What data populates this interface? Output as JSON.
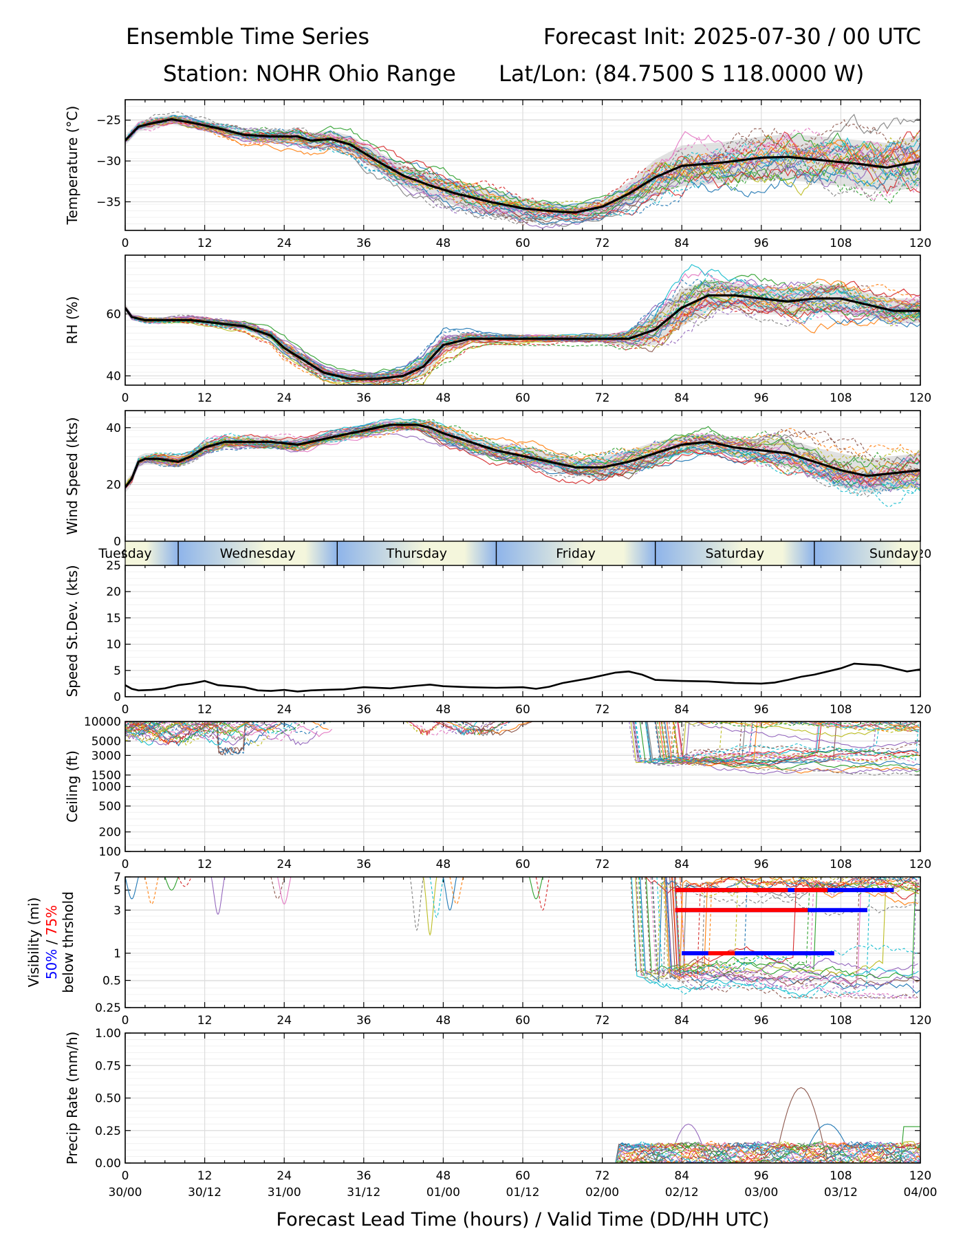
{
  "header": {
    "title_left": "Ensemble Time Series",
    "title_right": "Forecast Init: 2025-07-30 / 00 UTC",
    "station": "Station: NOHR Ohio Range",
    "latlon": "Lat/Lon: (84.7500 S 118.0000 W)"
  },
  "footer": {
    "xlabel": "Forecast Lead Time (hours) / Valid Time (DD/HH UTC)"
  },
  "colors": {
    "ensemble_palette": [
      "#1f77b4",
      "#ff7f0e",
      "#2ca02c",
      "#d62728",
      "#9467bd",
      "#8c564b",
      "#e377c2",
      "#7f7f7f",
      "#bcbd22",
      "#17becf"
    ],
    "mean": "#000000",
    "spread": "#c8c8c8",
    "vis_50": "#0000ff",
    "vis_75": "#ff0000",
    "day_blue": "#8eb4ea",
    "day_cream": "#f4f6dc"
  },
  "chart_data": {
    "type": "line",
    "x_ticks": [
      0,
      12,
      24,
      36,
      48,
      60,
      72,
      84,
      96,
      108,
      120
    ],
    "valid_time_labels": [
      "30/00",
      "30/12",
      "31/00",
      "31/12",
      "01/00",
      "01/12",
      "02/00",
      "02/12",
      "03/00",
      "03/12",
      "04/00"
    ],
    "xlim": [
      0,
      120
    ],
    "panels": [
      {
        "id": "temperature",
        "ylabel": "Temperature (°C)",
        "ylim": [
          -38.5,
          -22.5
        ],
        "yticks": [
          -35,
          -30,
          -25
        ],
        "ytick_labels": [
          "−35",
          "−30",
          "−25"
        ],
        "ensemble_members": 30,
        "mean": {
          "x": [
            0,
            2,
            4,
            7,
            10,
            14,
            18,
            22,
            26,
            28,
            31,
            34,
            38,
            42,
            46,
            50,
            55,
            60,
            65,
            68,
            72,
            76,
            80,
            84,
            90,
            96,
            100,
            105,
            110,
            115,
            120
          ],
          "y": [
            -27.5,
            -25.8,
            -25.4,
            -24.9,
            -25.3,
            -26.0,
            -26.8,
            -27.0,
            -27.0,
            -27.5,
            -27.3,
            -28.0,
            -30.0,
            -31.8,
            -33.0,
            -34.0,
            -35.0,
            -35.8,
            -36.2,
            -36.3,
            -35.6,
            -34.0,
            -32.0,
            -30.6,
            -30.2,
            -29.6,
            -29.5,
            -29.9,
            -30.3,
            -30.8,
            -30.0
          ]
        },
        "spread": [
          0.6,
          0.6,
          0.7,
          0.6,
          0.6,
          0.7,
          0.8,
          0.8,
          0.9,
          0.9,
          1.0,
          1.1,
          1.2,
          1.3,
          1.4,
          1.5,
          1.5,
          1.3,
          1.0,
          0.9,
          1.0,
          1.4,
          2.2,
          2.5,
          2.5,
          2.6,
          2.8,
          2.9,
          2.9,
          3.0,
          3.2
        ]
      },
      {
        "id": "rh",
        "ylabel": "RH (%)",
        "ylim": [
          37,
          79
        ],
        "yticks": [
          40,
          60
        ],
        "ytick_labels": [
          "40",
          "60"
        ],
        "ensemble_members": 30,
        "mean": {
          "x": [
            0,
            1,
            3,
            6,
            10,
            14,
            18,
            22,
            24,
            27,
            30,
            34,
            38,
            42,
            45,
            48,
            52,
            56,
            60,
            64,
            68,
            72,
            76,
            80,
            84,
            88,
            92,
            96,
            100,
            104,
            108,
            112,
            116,
            120
          ],
          "y": [
            62,
            59,
            58,
            58,
            58,
            57,
            56,
            53,
            49,
            45,
            41,
            39,
            39,
            40,
            43,
            50,
            52,
            52,
            52,
            52,
            52,
            52,
            52,
            55,
            62,
            66,
            66,
            65,
            64,
            65,
            65,
            63,
            61,
            61
          ]
        },
        "spread": [
          1.5,
          1.0,
          1.0,
          1.0,
          1.0,
          1.0,
          1.2,
          1.5,
          2.0,
          2.0,
          1.5,
          1.2,
          1.5,
          2.0,
          3.0,
          3.0,
          1.5,
          1.0,
          1.0,
          1.0,
          1.0,
          1.2,
          2.5,
          5.0,
          6.0,
          5.0,
          4.0,
          4.0,
          4.5,
          4.5,
          4.5,
          4.0,
          4.0,
          4.0
        ]
      },
      {
        "id": "wind",
        "ylabel": "Wind Speed (kts)",
        "ylim": [
          0,
          46
        ],
        "yticks": [
          0,
          20,
          40
        ],
        "ytick_labels": [
          "0",
          "20",
          "40"
        ],
        "ensemble_members": 30,
        "mean": {
          "x": [
            0,
            1,
            2,
            3,
            5,
            8,
            10,
            12,
            15,
            18,
            22,
            26,
            30,
            34,
            38,
            40,
            42,
            44,
            46,
            48,
            52,
            56,
            60,
            64,
            68,
            72,
            76,
            80,
            84,
            88,
            92,
            96,
            100,
            104,
            108,
            112,
            116,
            120
          ],
          "y": [
            19,
            22,
            28,
            29,
            29,
            28,
            30,
            33,
            35,
            35,
            35,
            34,
            36,
            38,
            40,
            41,
            41,
            41,
            40,
            38,
            35,
            32,
            30,
            28,
            26,
            26,
            28,
            31,
            34,
            35,
            33,
            32,
            31,
            28,
            25,
            23,
            24,
            25
          ]
        },
        "spread": [
          2,
          2,
          2,
          2,
          2,
          2,
          2,
          2,
          2,
          2,
          2,
          2,
          2,
          2,
          2,
          2,
          2,
          2,
          2.5,
          2.5,
          2.5,
          2.5,
          3,
          3,
          3,
          4,
          4,
          4,
          3,
          3,
          3,
          4,
          5,
          5,
          6,
          6,
          6,
          6
        ]
      },
      {
        "id": "speed_std",
        "ylabel": "Speed St.Dev. (kts)",
        "ylim": [
          0,
          25
        ],
        "yticks": [
          0,
          5,
          10,
          15,
          20,
          25
        ],
        "ytick_labels": [
          "0",
          "5",
          "10",
          "15",
          "20",
          "25"
        ],
        "mean": {
          "x": [
            0,
            1,
            2,
            4,
            6,
            8,
            10,
            12,
            14,
            16,
            18,
            20,
            22,
            24,
            26,
            28,
            30,
            33,
            36,
            40,
            44,
            46,
            48,
            52,
            56,
            60,
            62,
            64,
            66,
            70,
            74,
            76,
            78,
            80,
            84,
            88,
            92,
            96,
            98,
            100,
            102,
            104,
            106,
            108,
            110,
            114,
            118,
            120
          ],
          "y": [
            2.2,
            1.5,
            1.2,
            1.3,
            1.6,
            2.2,
            2.5,
            3.0,
            2.2,
            2.0,
            1.8,
            1.2,
            1.1,
            1.3,
            1.0,
            1.2,
            1.3,
            1.4,
            1.8,
            1.6,
            2.1,
            2.3,
            2.0,
            1.8,
            1.7,
            1.8,
            1.5,
            1.9,
            2.6,
            3.5,
            4.6,
            4.8,
            4.2,
            3.2,
            3.0,
            2.9,
            2.6,
            2.5,
            2.7,
            3.2,
            3.8,
            4.2,
            4.8,
            5.4,
            6.3,
            6.0,
            4.8,
            5.2
          ]
        }
      },
      {
        "id": "ceiling",
        "ylabel": "Ceiling (ft)",
        "scale": "log",
        "ylim": [
          100,
          10000
        ],
        "yticks": [
          100,
          200,
          500,
          1000,
          1500,
          3000,
          5000,
          10000
        ],
        "ytick_labels": [
          "100",
          "200",
          "500",
          "1000",
          "1500",
          "3000",
          "5000",
          "10000"
        ]
      },
      {
        "id": "visibility",
        "ylabel": "Visibility (mi)",
        "ylabel_50": "50%",
        "ylabel_sep": " / ",
        "ylabel_75": "75%",
        "ylabel_sub": "below thrshold",
        "scale": "log",
        "ylim": [
          0.25,
          7
        ],
        "yticks": [
          0.25,
          0.5,
          1,
          3,
          5,
          7
        ],
        "ytick_labels": [
          "0.25",
          "0.5",
          "1",
          "3",
          "5",
          "7"
        ],
        "thresholds": [
          {
            "level": 5,
            "x_start": 83,
            "x_end": 116,
            "p75_segments": [
              [
                83,
                100
              ],
              [
                101,
                106
              ]
            ]
          },
          {
            "level": 3,
            "x_start": 83,
            "x_end": 112,
            "p75_segments": [
              [
                83,
                103
              ]
            ]
          },
          {
            "level": 1,
            "x_start": 84,
            "x_end": 107,
            "p75_segments": [
              [
                88,
                92
              ]
            ]
          }
        ]
      },
      {
        "id": "precip",
        "ylabel": "Precip Rate (mm/h)",
        "ylim": [
          0,
          1
        ],
        "yticks": [
          0,
          0.25,
          0.5,
          0.75,
          1.0
        ],
        "ytick_labels": [
          "0.00",
          "0.25",
          "0.50",
          "0.75",
          "1.00"
        ]
      }
    ],
    "day_band": {
      "labels": [
        "Tuesday",
        "Wednesday",
        "Thursday",
        "Friday",
        "Saturday",
        "Sunday"
      ],
      "label_hours": [
        0,
        20,
        44,
        68,
        92,
        116
      ],
      "dividers": [
        8,
        32,
        56,
        80,
        104
      ]
    }
  }
}
